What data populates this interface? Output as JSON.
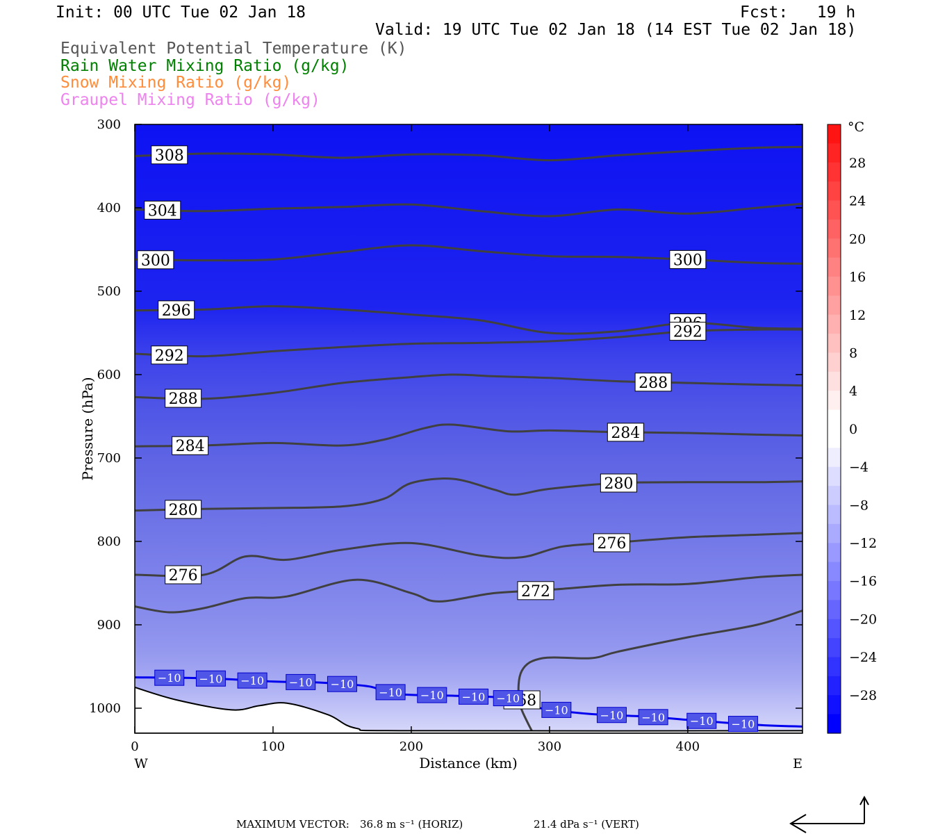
{
  "header": {
    "init": "Init: 00 UTC Tue 02 Jan 18",
    "fcst": "Fcst:   19 h",
    "valid": "Valid: 19 UTC Tue 02 Jan 18 (14 EST Tue 02 Jan 18)"
  },
  "legend": [
    {
      "text": "Equivalent Potential Temperature (K)",
      "color": "#555555"
    },
    {
      "text": "Rain Water Mixing Ratio (g/kg)",
      "color": "#008000"
    },
    {
      "text": "Snow Mixing Ratio (g/kg)",
      "color": "#ff8c3a"
    },
    {
      "text": "Graupel Mixing Ratio (g/kg)",
      "color": "#ee82ee"
    }
  ],
  "chart_data": {
    "type": "contour",
    "xlabel": "Distance (km)",
    "ylabel": "Pressure (hPa)",
    "xlim": [
      0,
      483
    ],
    "ylim": [
      1030,
      300
    ],
    "x_ticks": [
      "0",
      "100",
      "200",
      "300",
      "400"
    ],
    "y_ticks": [
      "300",
      "400",
      "500",
      "600",
      "700",
      "800",
      "900",
      "1000"
    ],
    "x_end_labels": {
      "left": "W",
      "right": "E"
    },
    "colorbar": {
      "unit": "°C",
      "tick_labels": [
        "28",
        "24",
        "20",
        "16",
        "12",
        "8",
        "4",
        "0",
        "−4",
        "−8",
        "−12",
        "−16",
        "−20",
        "−24",
        "−28"
      ]
    },
    "theta_e_contours": [
      {
        "level": 308,
        "label": "308",
        "points": [
          [
            0,
            338
          ],
          [
            50,
            335
          ],
          [
            100,
            336
          ],
          [
            150,
            340
          ],
          [
            200,
            336
          ],
          [
            250,
            337
          ],
          [
            300,
            343
          ],
          [
            350,
            337
          ],
          [
            400,
            332
          ],
          [
            450,
            328
          ],
          [
            483,
            327
          ]
        ]
      },
      {
        "level": 304,
        "label": "304",
        "points": [
          [
            0,
            402
          ],
          [
            50,
            404
          ],
          [
            100,
            401
          ],
          [
            150,
            399
          ],
          [
            200,
            396
          ],
          [
            250,
            404
          ],
          [
            300,
            410
          ],
          [
            350,
            402
          ],
          [
            400,
            407
          ],
          [
            450,
            400
          ],
          [
            483,
            395
          ]
        ]
      },
      {
        "level": 300,
        "label": "300",
        "points": [
          [
            0,
            462
          ],
          [
            50,
            463
          ],
          [
            100,
            462
          ],
          [
            150,
            453
          ],
          [
            200,
            445
          ],
          [
            250,
            452
          ],
          [
            300,
            458
          ],
          [
            350,
            459
          ],
          [
            400,
            462
          ],
          [
            450,
            466
          ],
          [
            483,
            467
          ]
        ]
      },
      {
        "level": 296,
        "label": "296",
        "points": [
          [
            0,
            523
          ],
          [
            50,
            522
          ],
          [
            100,
            518
          ],
          [
            150,
            522
          ],
          [
            200,
            528
          ],
          [
            250,
            535
          ],
          [
            300,
            550
          ],
          [
            350,
            548
          ],
          [
            400,
            538
          ],
          [
            450,
            544
          ],
          [
            483,
            545
          ]
        ]
      },
      {
        "level": 292,
        "label": "292",
        "points": [
          [
            0,
            575
          ],
          [
            50,
            578
          ],
          [
            100,
            572
          ],
          [
            150,
            567
          ],
          [
            200,
            563
          ],
          [
            250,
            562
          ],
          [
            300,
            560
          ],
          [
            350,
            555
          ],
          [
            400,
            548
          ],
          [
            450,
            546
          ],
          [
            483,
            546
          ]
        ]
      },
      {
        "level": 288,
        "label": "288",
        "points": [
          [
            0,
            627
          ],
          [
            50,
            629
          ],
          [
            100,
            622
          ],
          [
            150,
            610
          ],
          [
            200,
            603
          ],
          [
            230,
            600
          ],
          [
            260,
            602
          ],
          [
            300,
            604
          ],
          [
            350,
            608
          ],
          [
            400,
            610
          ],
          [
            450,
            612
          ],
          [
            483,
            613
          ]
        ]
      },
      {
        "level": 284,
        "label": "284",
        "points": [
          [
            0,
            686
          ],
          [
            50,
            685
          ],
          [
            100,
            682
          ],
          [
            150,
            685
          ],
          [
            180,
            678
          ],
          [
            210,
            664
          ],
          [
            230,
            660
          ],
          [
            270,
            668
          ],
          [
            300,
            667
          ],
          [
            350,
            669
          ],
          [
            400,
            670
          ],
          [
            450,
            672
          ],
          [
            483,
            673
          ]
        ]
      },
      {
        "level": 280,
        "label": "280",
        "points": [
          [
            0,
            763
          ],
          [
            50,
            761
          ],
          [
            100,
            760
          ],
          [
            150,
            758
          ],
          [
            180,
            749
          ],
          [
            200,
            730
          ],
          [
            230,
            725
          ],
          [
            260,
            738
          ],
          [
            275,
            744
          ],
          [
            300,
            737
          ],
          [
            350,
            730
          ],
          [
            400,
            729
          ],
          [
            450,
            729
          ],
          [
            483,
            728
          ]
        ]
      },
      {
        "level": 276,
        "label": "276",
        "points": [
          [
            0,
            840
          ],
          [
            50,
            840
          ],
          [
            80,
            818
          ],
          [
            110,
            822
          ],
          [
            150,
            810
          ],
          [
            200,
            802
          ],
          [
            250,
            817
          ],
          [
            280,
            819
          ],
          [
            310,
            806
          ],
          [
            350,
            801
          ],
          [
            400,
            795
          ],
          [
            450,
            792
          ],
          [
            483,
            790
          ]
        ]
      },
      {
        "level": 272,
        "label": "272",
        "points": [
          [
            0,
            878
          ],
          [
            25,
            885
          ],
          [
            50,
            880
          ],
          [
            80,
            868
          ],
          [
            110,
            866
          ],
          [
            160,
            846
          ],
          [
            200,
            862
          ],
          [
            220,
            872
          ],
          [
            260,
            862
          ],
          [
            300,
            858
          ],
          [
            350,
            852
          ],
          [
            400,
            851
          ],
          [
            450,
            843
          ],
          [
            483,
            840
          ]
        ]
      },
      {
        "level": 268,
        "label": "268",
        "points": [
          [
            297,
            1055
          ],
          [
            285,
            1020
          ],
          [
            278,
            990
          ],
          [
            280,
            955
          ],
          [
            295,
            940
          ],
          [
            330,
            940
          ],
          [
            350,
            932
          ],
          [
            400,
            915
          ],
          [
            450,
            900
          ],
          [
            483,
            883
          ]
        ]
      }
    ],
    "freezing_isotherm": {
      "level": -10,
      "label": "−10",
      "points": [
        [
          0,
          963
        ],
        [
          50,
          964
        ],
        [
          100,
          968
        ],
        [
          130,
          969
        ],
        [
          150,
          971
        ],
        [
          170,
          974
        ],
        [
          190,
          983
        ],
        [
          230,
          985
        ],
        [
          270,
          988
        ],
        [
          290,
          999
        ],
        [
          330,
          1007
        ],
        [
          370,
          1010
        ],
        [
          400,
          1014
        ],
        [
          450,
          1020
        ],
        [
          483,
          1022
        ]
      ]
    },
    "terrain": [
      [
        0,
        975
      ],
      [
        30,
        990
      ],
      [
        70,
        1002
      ],
      [
        90,
        997
      ],
      [
        110,
        994
      ],
      [
        140,
        1008
      ],
      [
        160,
        1024
      ],
      [
        200,
        1027
      ],
      [
        483,
        1027
      ]
    ],
    "wind_vectors": [],
    "max_vector": {
      "label": "MAXIMUM VECTOR:",
      "horiz": "36.8 m s⁻¹ (HORIZ)",
      "vert": "21.4 dPa s⁻¹ (VERT)"
    }
  }
}
